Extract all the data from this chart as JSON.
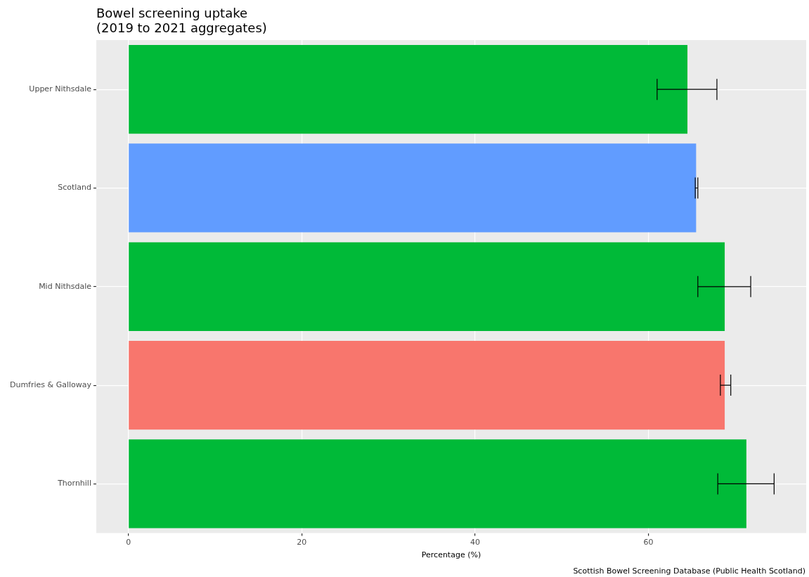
{
  "chart_data": {
    "type": "bar",
    "orientation": "horizontal",
    "title": "Bowel screening uptake\n(2019 to 2021 aggregates)",
    "xlabel": "Percentage (%)",
    "categories": [
      "Upper Nithsdale",
      "Scotland",
      "Mid Nithsdale",
      "Dumfries & Galloway",
      "Thornhill"
    ],
    "values": [
      64.5,
      65.5,
      68.8,
      68.8,
      71.3
    ],
    "colors": [
      "#00ba38",
      "#619cff",
      "#00ba38",
      "#f8766d",
      "#00ba38"
    ],
    "errors": [
      [
        61.0,
        67.9
      ],
      [
        65.4,
        65.7
      ],
      [
        65.7,
        71.8
      ],
      [
        68.3,
        69.5
      ],
      [
        68.0,
        74.5
      ]
    ],
    "xlim": [
      -3.7,
      78.2
    ],
    "xticks": [
      0,
      20,
      40,
      60
    ],
    "grid": true,
    "legend": false,
    "annotations": [
      "Scottish Bowel Screening Database (Public Health Scotland)"
    ]
  }
}
